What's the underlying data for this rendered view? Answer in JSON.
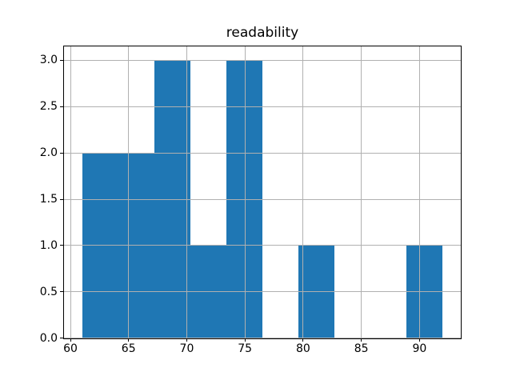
{
  "figure": {
    "background": "#ffffff"
  },
  "chart_data": {
    "type": "bar",
    "subtype": "histogram",
    "title": "readability",
    "xlabel": "",
    "ylabel": "",
    "bin_edges": [
      61.0,
      64.1,
      67.2,
      70.3,
      73.4,
      76.5,
      79.6,
      82.7,
      85.8,
      88.9,
      92.0
    ],
    "counts": [
      2,
      2,
      3,
      1,
      3,
      0,
      1,
      0,
      0,
      1
    ],
    "xlim": [
      59.45,
      93.55
    ],
    "ylim": [
      0,
      3.15
    ],
    "xtick_values": [
      60,
      65,
      70,
      75,
      80,
      85,
      90
    ],
    "xtick_labels": [
      "60",
      "65",
      "70",
      "75",
      "80",
      "85",
      "90"
    ],
    "ytick_values": [
      0.0,
      0.5,
      1.0,
      1.5,
      2.0,
      2.5,
      3.0
    ],
    "ytick_labels": [
      "0.0",
      "0.5",
      "1.0",
      "1.5",
      "2.0",
      "2.5",
      "3.0"
    ],
    "grid": true,
    "grid_over_bars": true,
    "legend": null,
    "bar_color": "#1f77b4",
    "grid_color": "#b0b0b0",
    "axis_color": "#000000",
    "text_color": "#000000"
  }
}
